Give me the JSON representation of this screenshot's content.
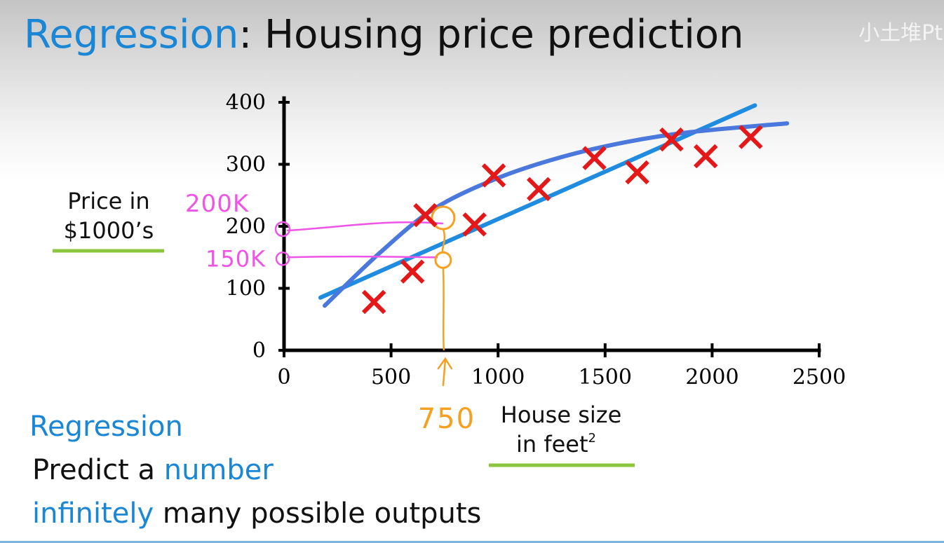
{
  "slide": {
    "title_accent": "Regression",
    "title_rest": ": Housing price prediction",
    "watermark": "小土堆Pt"
  },
  "summary": {
    "heading": "Regression",
    "line2_prefix": "Predict a ",
    "line2_accent": "number",
    "line3_accent": "infinitely",
    "line3_rest": " many possible outputs"
  },
  "chart_data": {
    "type": "scatter",
    "title": "",
    "ylabel_line1": "Price in",
    "ylabel_line2": "$1000’s",
    "xlabel_line1": "House size",
    "xlabel_line2": "in feet",
    "xlabel_superscript": "2",
    "xlim": [
      0,
      2500
    ],
    "ylim": [
      0,
      400
    ],
    "xticks": [
      0,
      500,
      1000,
      1500,
      2000,
      2500
    ],
    "yticks": [
      0,
      100,
      200,
      300,
      400
    ],
    "grid": false,
    "colors": {
      "points": "#e41818",
      "fit": "#1f8ce0",
      "curve": "#4a78dc",
      "annotation_pink": "#ee55e6",
      "annotation_orange": "#f5a020",
      "axis_label_underline": "#8cc63f"
    },
    "series": [
      {
        "marker": "x",
        "points": [
          [
            420,
            78
          ],
          [
            600,
            127
          ],
          [
            660,
            218
          ],
          [
            890,
            203
          ],
          [
            980,
            282
          ],
          [
            1190,
            260
          ],
          [
            1450,
            310
          ],
          [
            1650,
            287
          ],
          [
            1810,
            340
          ],
          [
            1970,
            313
          ],
          [
            2180,
            344
          ]
        ]
      }
    ],
    "fits": [
      {
        "kind": "line",
        "from": [
          170,
          85
        ],
        "to": [
          2200,
          395
        ]
      },
      {
        "kind": "curve",
        "points": [
          [
            190,
            72
          ],
          [
            450,
            158
          ],
          [
            700,
            228
          ],
          [
            1000,
            278
          ],
          [
            1300,
            312
          ],
          [
            1600,
            336
          ],
          [
            1900,
            352
          ],
          [
            2350,
            366
          ]
        ]
      }
    ],
    "annotations": {
      "x_value": 750,
      "x_label": "750",
      "y_high": 200,
      "y_high_label": "200K",
      "y_low": 150,
      "y_low_label": "150K"
    }
  }
}
